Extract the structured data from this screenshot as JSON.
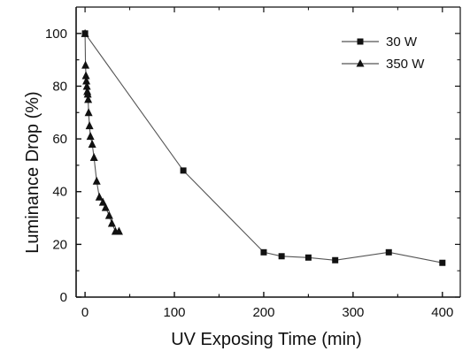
{
  "chart_data": {
    "type": "line",
    "xlabel": "UV Exposing Time (min)",
    "ylabel": "Luminance Drop (%)",
    "xlim": [
      -10,
      420
    ],
    "ylim": [
      0,
      110
    ],
    "x_ticks": [
      0,
      100,
      200,
      300,
      400
    ],
    "y_ticks": [
      0,
      20,
      40,
      60,
      80,
      100
    ],
    "grid": false,
    "legend_position": "top-right",
    "series": [
      {
        "name": "30 W",
        "marker": "square",
        "x": [
          0,
          110,
          200,
          220,
          250,
          280,
          340,
          400
        ],
        "y": [
          100,
          48,
          17,
          15.5,
          15,
          14,
          17,
          13
        ]
      },
      {
        "name": "350 W",
        "marker": "triangle",
        "x": [
          0,
          0.5,
          1,
          1.5,
          2,
          2.5,
          3,
          3.5,
          4,
          5,
          6,
          8,
          10,
          13,
          16,
          20,
          23,
          27,
          30,
          34,
          38
        ],
        "y": [
          100,
          88,
          84,
          82,
          80,
          78,
          77,
          75,
          70,
          65,
          61,
          58,
          53,
          44,
          38,
          36,
          34,
          31,
          28,
          25,
          25
        ]
      }
    ]
  },
  "colors": {
    "line": "#555555",
    "marker": "#111111",
    "axis": "#111111"
  }
}
